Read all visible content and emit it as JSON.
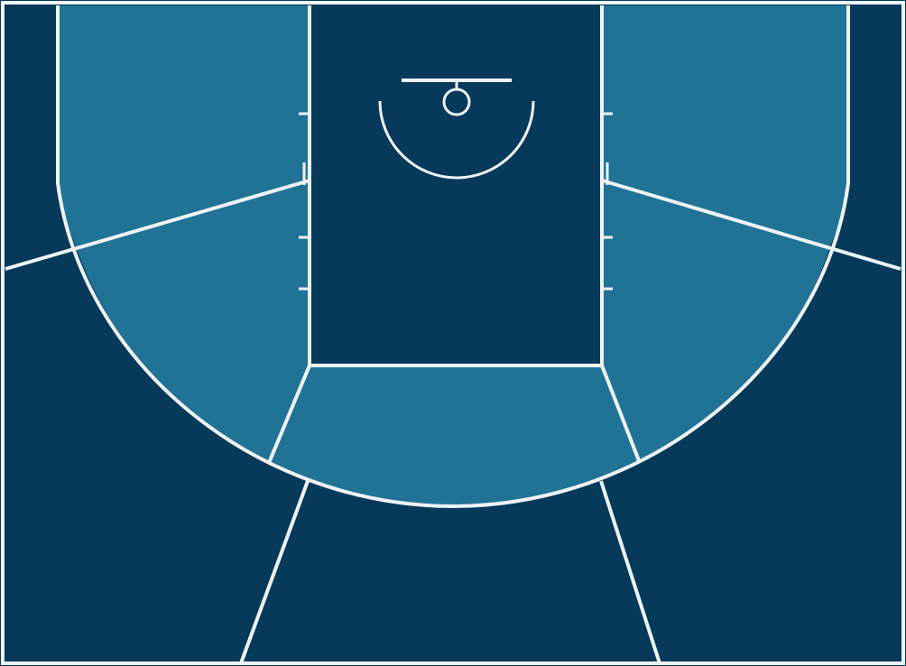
{
  "court": {
    "background_color": "#06395a",
    "mid_range_color": "#217396",
    "line_color": "#eef3f6",
    "zones": [
      "paint",
      "left-corner-three",
      "right-corner-three",
      "left-baseline-midrange",
      "right-baseline-midrange",
      "left-wing-midrange",
      "right-wing-midrange",
      "top-key-midrange",
      "left-wing-three",
      "right-wing-three",
      "top-three"
    ]
  }
}
